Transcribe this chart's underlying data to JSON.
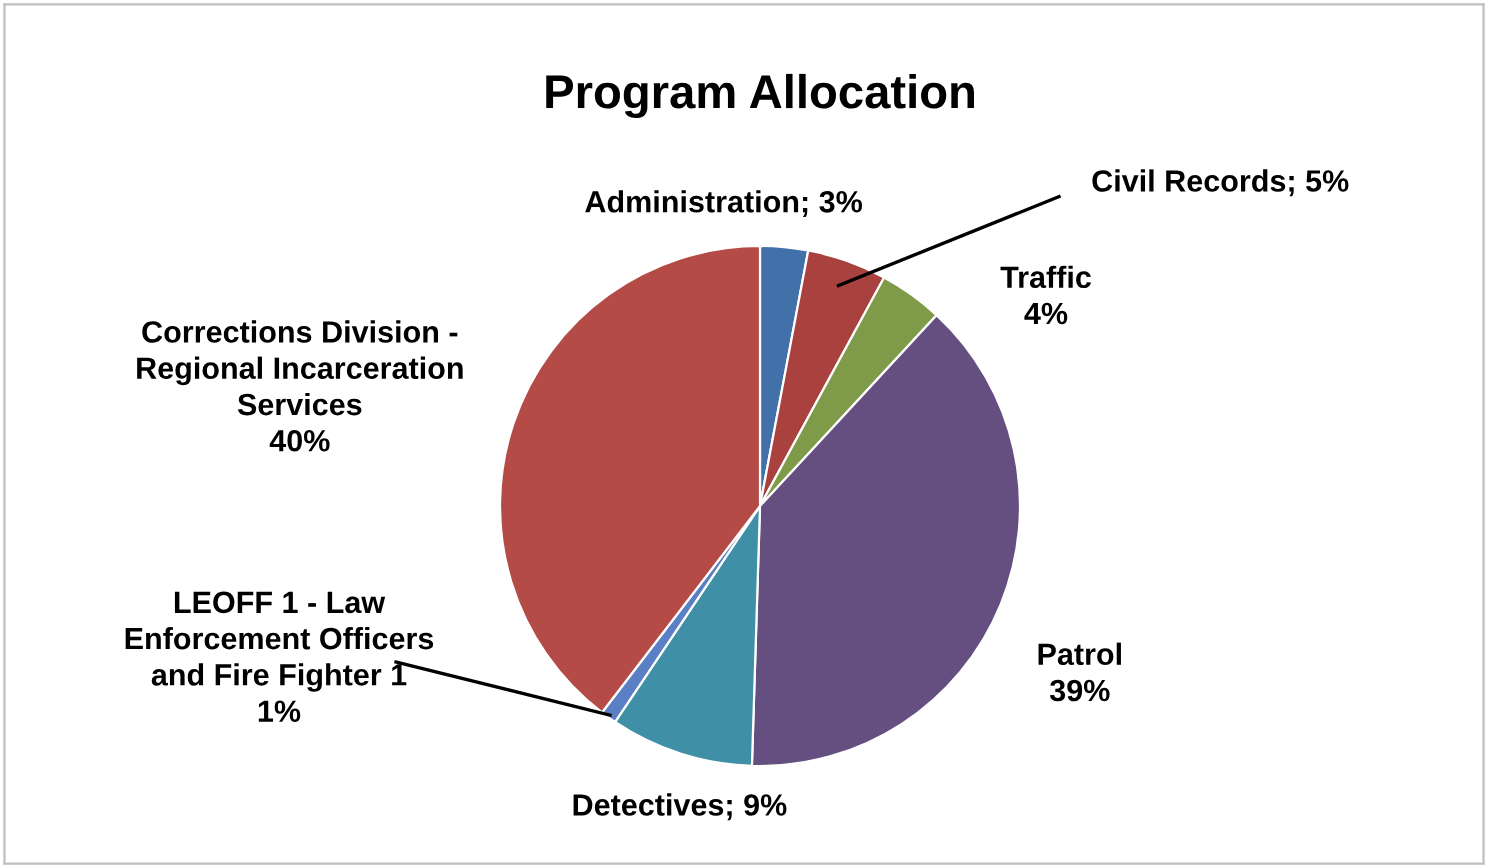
{
  "chart_data": {
    "type": "pie",
    "title": "Program Allocation",
    "categories": [
      "Administration",
      "Civil Records",
      "Traffic",
      "Patrol",
      "Detectives",
      "LEOFF 1 - Law\nEnforcement Officers\nand Fire Fighter 1",
      "Corrections Division -\nRegional Incarceration\nServices"
    ],
    "values": [
      3,
      5,
      4,
      39,
      9,
      1,
      40
    ],
    "value_labels": [
      "; 3%",
      "; 5%",
      "\n4%",
      "\n39%",
      "; 9%",
      "\n1%",
      "\n40%"
    ],
    "colors": [
      "#4270a8",
      "#a9413f",
      "#7f9a48",
      "#654f80",
      "#3f8fa6",
      "#5a7fc4",
      "#b54b47"
    ]
  }
}
